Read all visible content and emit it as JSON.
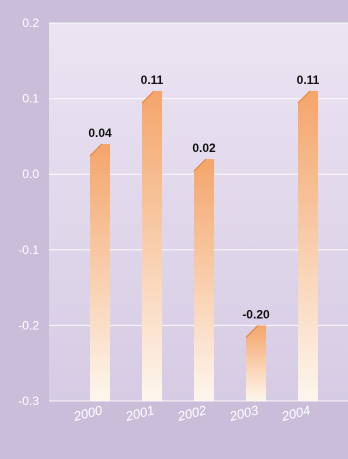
{
  "chart_data": {
    "type": "bar",
    "title": "",
    "xlabel": "",
    "ylabel": "",
    "categories": [
      "2000",
      "2001",
      "2002",
      "2003",
      "2004"
    ],
    "values": [
      0.04,
      0.11,
      0.02,
      -0.2,
      0.11
    ],
    "data_labels": [
      "0.04",
      "0.11",
      "0.02",
      "-0.20",
      "0.11"
    ],
    "ylim": [
      -0.3,
      0.2
    ],
    "yticks": [
      0.2,
      0.1,
      0.0,
      -0.1,
      -0.2,
      -0.3
    ],
    "ytick_labels": [
      "0.2",
      "0.1",
      "0.0",
      "-0.1",
      "-0.2",
      "-0.3"
    ],
    "grid": true,
    "legend": "none",
    "colors": {
      "background": "#c9bdda",
      "plot_area_top": "#ebe4f2",
      "plot_area_bottom": "#d6cbe4",
      "bar_top": "#f4a56a",
      "bar_bottom": "#fdf6ee",
      "grid": "#ffffff"
    }
  }
}
